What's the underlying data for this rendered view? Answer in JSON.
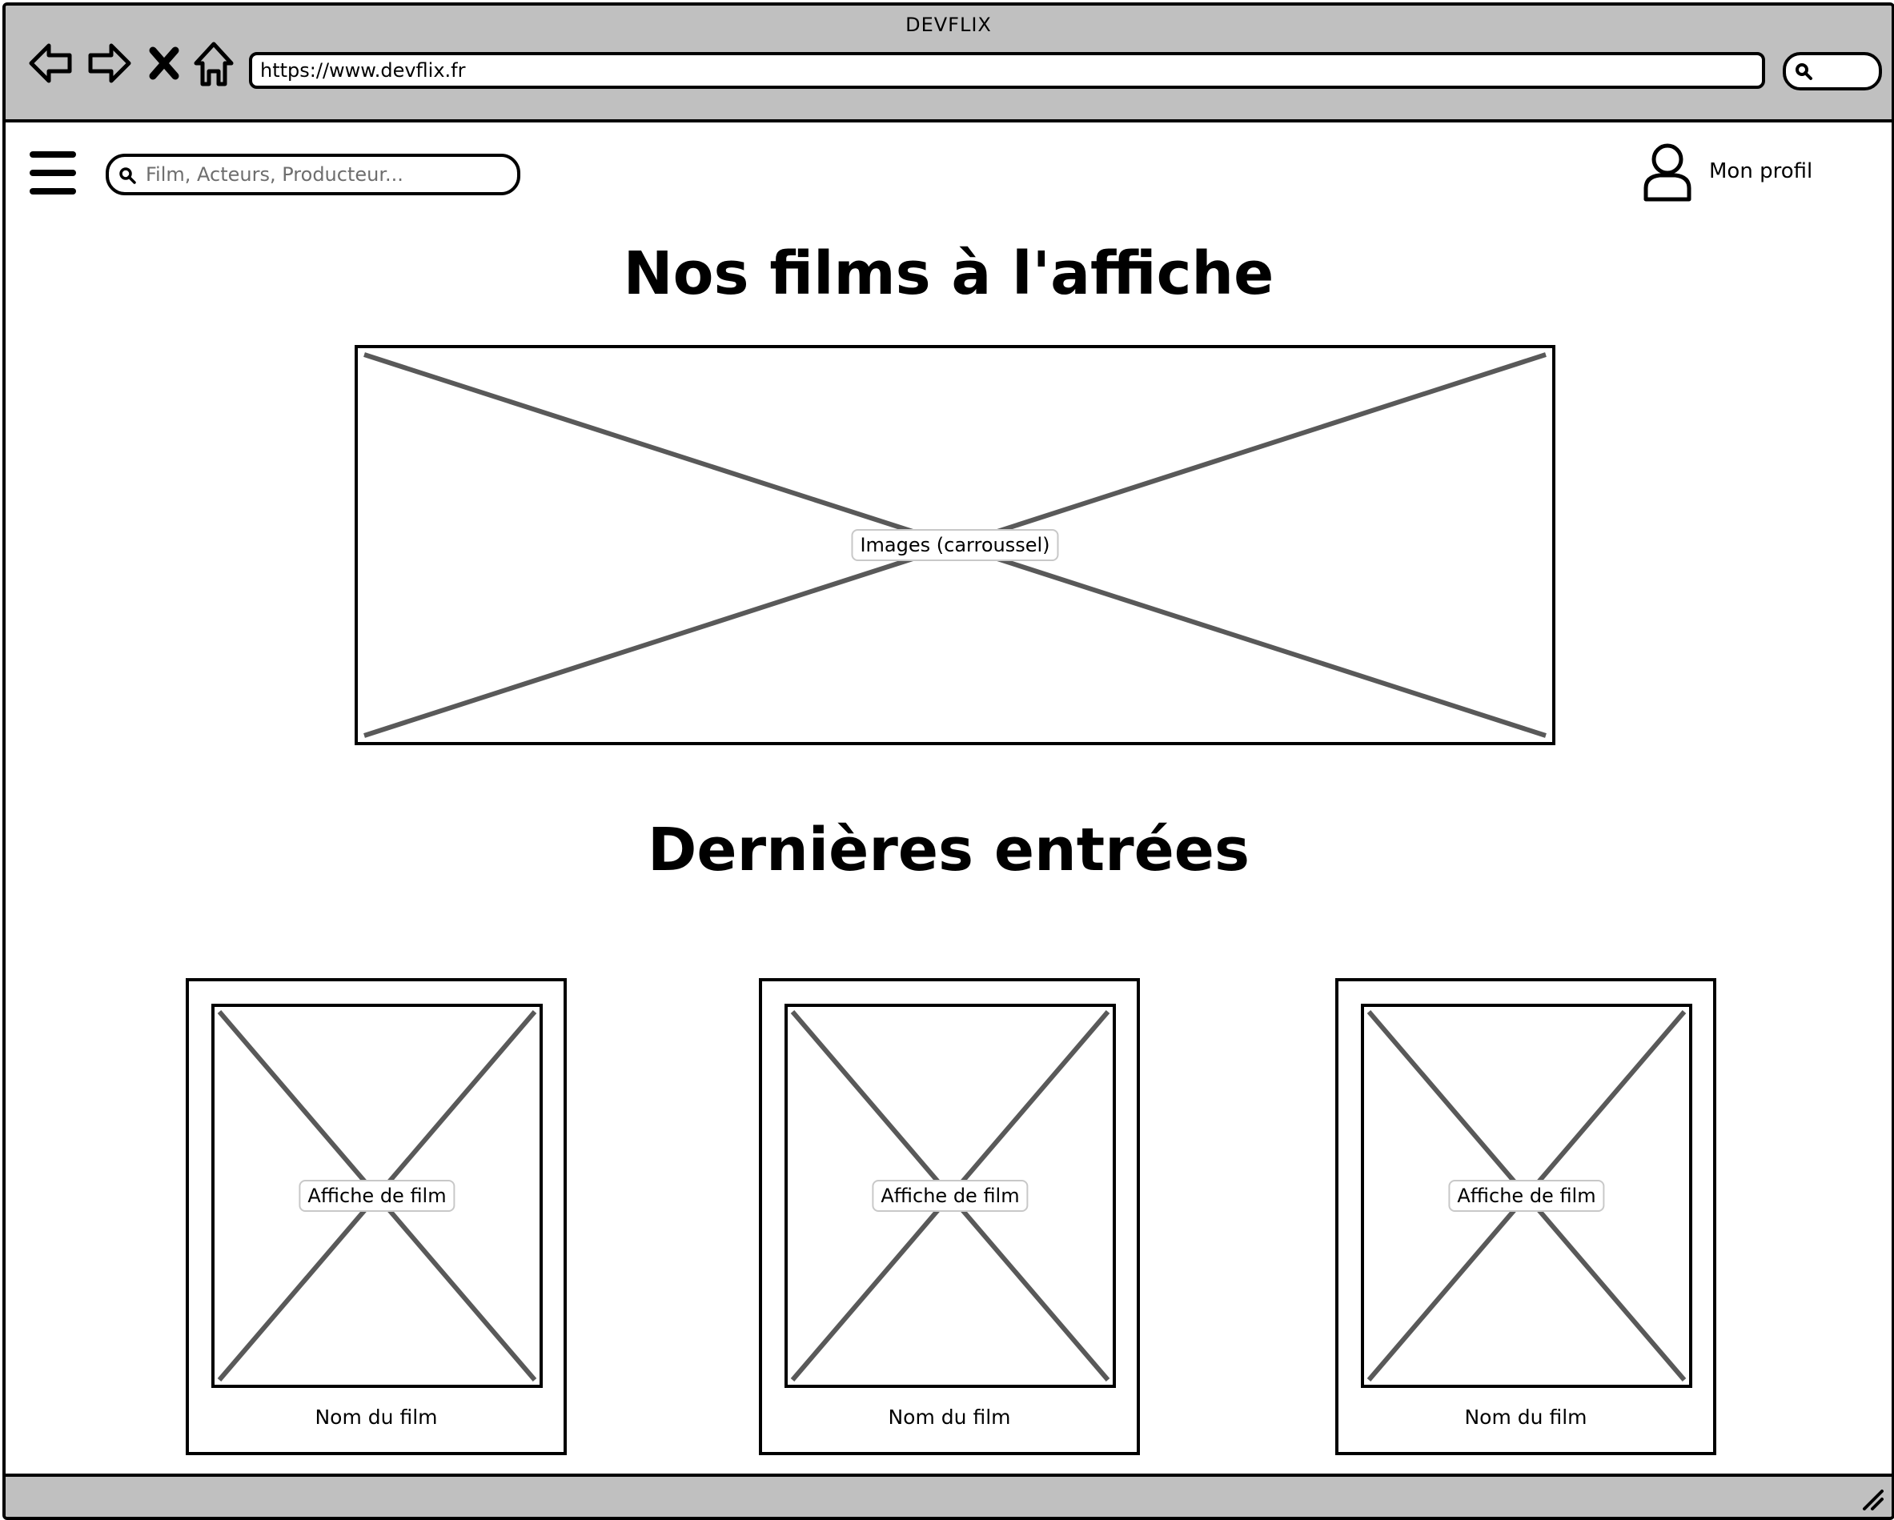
{
  "browser": {
    "window_title": "DEVFLIX",
    "url": "https://www.devflix.fr"
  },
  "header": {
    "search_placeholder": "Film, Acteurs, Producteur...",
    "profile_label": "Mon profil"
  },
  "main": {
    "section_now_showing": {
      "title": "Nos films à l'affiche",
      "carousel_label": "Images (carroussel)"
    },
    "section_latest": {
      "title": "Dernières entrées",
      "cards": [
        {
          "poster_label": "Affiche de film",
          "name": "Nom du film"
        },
        {
          "poster_label": "Affiche de film",
          "name": "Nom du film"
        },
        {
          "poster_label": "Affiche de film",
          "name": "Nom du film"
        }
      ]
    }
  },
  "colors": {
    "chrome_gray": "#c0c0c0",
    "placeholder_line": "#595959"
  }
}
